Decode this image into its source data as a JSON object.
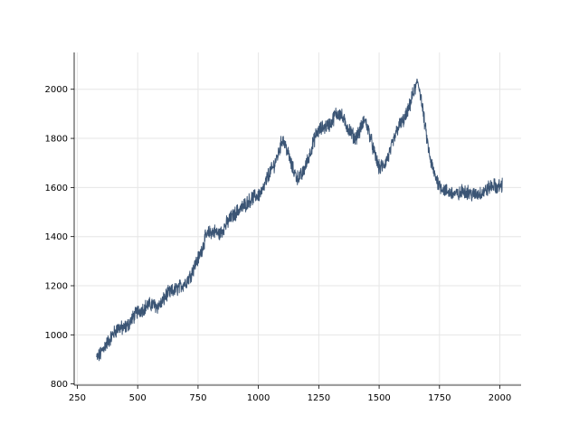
{
  "chart_data": {
    "type": "line",
    "title": "",
    "xlabel": "",
    "ylabel": "",
    "xlim": [
      237,
      2088
    ],
    "ylim": [
      795,
      2150
    ],
    "x_ticks": [
      250,
      500,
      750,
      1000,
      1250,
      1500,
      1750,
      2000
    ],
    "y_ticks": [
      800,
      1000,
      1200,
      1400,
      1600,
      1800,
      2000
    ],
    "grid": true,
    "legend": "none",
    "series_color": "#3b5575",
    "series": [
      {
        "anchors": [
          [
            330,
            905
          ],
          [
            345,
            920
          ],
          [
            360,
            950
          ],
          [
            380,
            975
          ],
          [
            400,
            1005
          ],
          [
            420,
            1030
          ],
          [
            440,
            1025
          ],
          [
            460,
            1040
          ],
          [
            480,
            1070
          ],
          [
            500,
            1095
          ],
          [
            520,
            1105
          ],
          [
            540,
            1120
          ],
          [
            560,
            1125
          ],
          [
            580,
            1115
          ],
          [
            600,
            1130
          ],
          [
            620,
            1165
          ],
          [
            640,
            1175
          ],
          [
            660,
            1185
          ],
          [
            680,
            1200
          ],
          [
            700,
            1215
          ],
          [
            720,
            1245
          ],
          [
            740,
            1290
          ],
          [
            760,
            1330
          ],
          [
            780,
            1395
          ],
          [
            800,
            1420
          ],
          [
            820,
            1420
          ],
          [
            840,
            1410
          ],
          [
            860,
            1440
          ],
          [
            880,
            1470
          ],
          [
            900,
            1490
          ],
          [
            920,
            1510
          ],
          [
            940,
            1525
          ],
          [
            960,
            1545
          ],
          [
            980,
            1560
          ],
          [
            1000,
            1570
          ],
          [
            1020,
            1590
          ],
          [
            1040,
            1650
          ],
          [
            1060,
            1680
          ],
          [
            1080,
            1730
          ],
          [
            1100,
            1800
          ],
          [
            1120,
            1750
          ],
          [
            1140,
            1680
          ],
          [
            1160,
            1640
          ],
          [
            1180,
            1650
          ],
          [
            1200,
            1700
          ],
          [
            1220,
            1760
          ],
          [
            1240,
            1820
          ],
          [
            1260,
            1840
          ],
          [
            1280,
            1850
          ],
          [
            1300,
            1860
          ],
          [
            1320,
            1900
          ],
          [
            1340,
            1900
          ],
          [
            1360,
            1860
          ],
          [
            1380,
            1830
          ],
          [
            1400,
            1800
          ],
          [
            1420,
            1830
          ],
          [
            1440,
            1880
          ],
          [
            1460,
            1820
          ],
          [
            1480,
            1740
          ],
          [
            1500,
            1680
          ],
          [
            1520,
            1690
          ],
          [
            1540,
            1730
          ],
          [
            1560,
            1790
          ],
          [
            1580,
            1850
          ],
          [
            1600,
            1870
          ],
          [
            1620,
            1910
          ],
          [
            1640,
            1980
          ],
          [
            1660,
            2030
          ],
          [
            1670,
            1990
          ],
          [
            1690,
            1850
          ],
          [
            1710,
            1720
          ],
          [
            1730,
            1650
          ],
          [
            1750,
            1610
          ],
          [
            1770,
            1590
          ],
          [
            1790,
            1580
          ],
          [
            1810,
            1575
          ],
          [
            1830,
            1570
          ],
          [
            1850,
            1590
          ],
          [
            1870,
            1580
          ],
          [
            1890,
            1570
          ],
          [
            1910,
            1575
          ],
          [
            1930,
            1580
          ],
          [
            1950,
            1595
          ],
          [
            1970,
            1610
          ],
          [
            1990,
            1600
          ],
          [
            2010,
            1610
          ]
        ],
        "noise_amplitude": 25,
        "sample_count": 1680
      }
    ]
  }
}
